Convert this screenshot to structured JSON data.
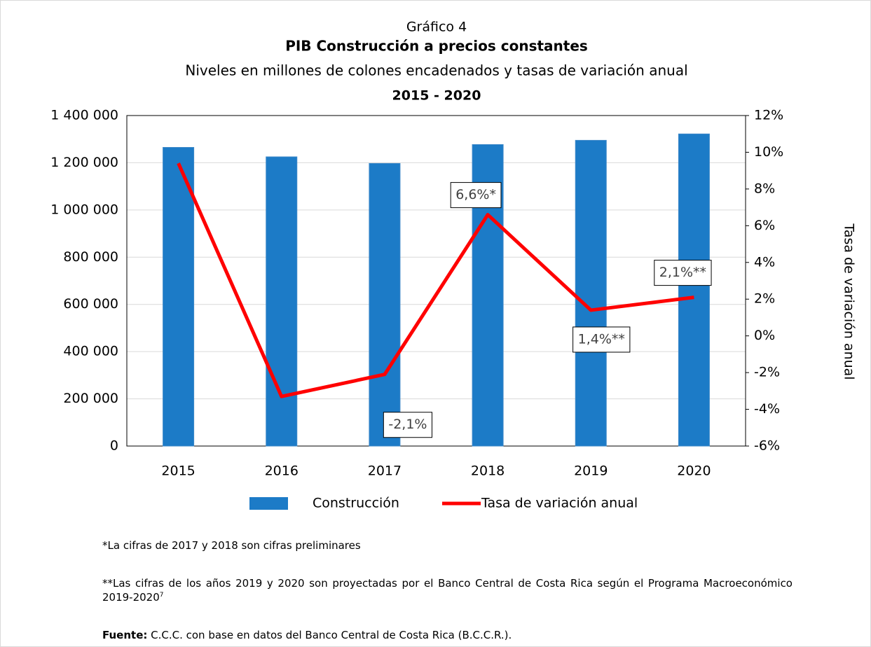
{
  "chart_data": {
    "type": "bar_line",
    "title": "Gráfico 4",
    "subtitle": "PIB Construcción a precios constantes",
    "subtitle2": "Niveles en millones de colones encadenados y tasas de variación anual",
    "period": "2015 - 2020",
    "y2label": "Tasa de variación anual",
    "categories": [
      "2015",
      "2016",
      "2017",
      "2018",
      "2019",
      "2020"
    ],
    "series": [
      {
        "name": "Construcción",
        "color": "#1c7bc7",
        "type": "bar",
        "values": [
          1265000,
          1225000,
          1197000,
          1277000,
          1295000,
          1322000
        ]
      },
      {
        "name": "Tasa de variación anual",
        "color": "#ff0000",
        "type": "line",
        "axis": "y2",
        "values": [
          9.4,
          -3.3,
          -2.1,
          6.6,
          1.4,
          2.1
        ],
        "value_labels": [
          null,
          null,
          "-2,1%",
          "6,6%*",
          "1,4%**",
          "2,1%**"
        ]
      }
    ],
    "ylim": [
      0,
      1400000
    ],
    "yticks": [
      0,
      {
        "value": 200000,
        "label": "200 000"
      },
      {
        "value": 400000,
        "label": "400 000"
      },
      {
        "value": 600000,
        "label": "600 000"
      },
      {
        "value": 800000,
        "label": "800 000"
      },
      {
        "value": 1000000,
        "label": "1 000 000"
      },
      {
        "value": 1200000,
        "label": "1 200 000"
      },
      {
        "value": 1400000,
        "label": "1 400 000"
      }
    ],
    "y2lim": [
      -6,
      12
    ],
    "y2ticks": [
      {
        "value": -6,
        "label": "-6%"
      },
      {
        "value": -4,
        "label": "-4%"
      },
      {
        "value": -2,
        "label": "-2%"
      },
      {
        "value": 0,
        "label": "0%"
      },
      {
        "value": 2,
        "label": "2%"
      },
      {
        "value": 4,
        "label": "4%"
      },
      {
        "value": 6,
        "label": "6%"
      },
      {
        "value": 8,
        "label": "8%"
      },
      {
        "value": 10,
        "label": "10%"
      },
      {
        "value": 12,
        "label": "12%"
      }
    ],
    "grid": true,
    "legend": "bottom"
  },
  "notes": {
    "footnotes": [
      "*La cifras de 2017 y 2018 son cifras preliminares",
      "**Las cifras de los años 2019 y 2020 son proyectadas por el Banco Central de Costa Rica según  el Programa Macroeconómico 2019-2020"
    ],
    "footnote_ref": "7",
    "source_label": "Fuente:",
    "source_text": " C.C.C. con base en datos del Banco Central de Costa Rica (B.C.C.R.)."
  }
}
